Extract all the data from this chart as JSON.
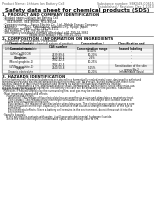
{
  "header_left": "Product Name: Lithium Ion Battery Cell",
  "header_right_line1": "Substance number: SBK049-00615",
  "header_right_line2": "Established / Revision: Dec.1.2010",
  "title": "Safety data sheet for chemical products (SDS)",
  "section1_title": "1. PRODUCT AND COMPANY IDENTIFICATION",
  "section1_lines": [
    " · Product name: Lithium Ion Battery Cell",
    " · Product code: Cylindrical-type cell",
    "      014-86500,  014-86500,  014-8650A",
    " · Company name:    Sanyo Electric Co., Ltd., Mobile Energy Company",
    " · Address:         2001, Kamiosakan, Sumoto-City, Hyogo, Japan",
    " · Telephone number:   +81-799-26-4111",
    " · Fax number:  +81-799-26-4120",
    " · Emergency telephone number (Weekday) +81-799-26-3862",
    "                               (Night and Holiday) +81-799-26-3101"
  ],
  "section2_title": "2. COMPOSITION / INFORMATION ON INGREDIENTS",
  "section2_sub": " · Substance or preparation: Preparation",
  "section2_sub2": " · Information about the chemical nature of product",
  "table_col_names": [
    "Chemical name /\nCommon name",
    "CAS number",
    "Concentration /\nConcentration range",
    "Classification and\nhazard labeling"
  ],
  "table_rows": [
    [
      "Lithium cobalt tantalate\n(LiMnCo PECOX)",
      "-",
      "30-40%",
      "-"
    ],
    [
      "Iron",
      "7439-89-6",
      "10-20%",
      "-"
    ],
    [
      "Aluminum",
      "7429-90-5",
      "2-5%",
      "-"
    ],
    [
      "Graphite\n(Mixed graphite-1)\n(4/5No graphite-1)",
      "7782-42-5\n7782-42-5",
      "10-25%",
      "-"
    ],
    [
      "Copper",
      "7440-50-8",
      "5-15%",
      "Sensitization of the skin\ngroup No.2"
    ],
    [
      "Organic electrolyte",
      "-",
      "10-20%",
      "Inflammable liquid"
    ]
  ],
  "section3_title": "3. HAZARDS IDENTIFICATION",
  "section3_text": [
    "For the battery cell, chemical substances are stored in a hermetically sealed metal case, designed to withstand",
    "temperatures during electro-decomposition during normal use. As a result, during normal-use, there is no",
    "physical danger of ignition or explosion and there is no danger of hazardous materials leakage.",
    "  However, if exposed to a fire, added mechanical shock, decomposed, when electric shock or by miss-use,",
    "the gas release vent can be operated. The battery cell case will be breached or fire-polemic, hazardous",
    "materials may be released.",
    "  Moreover, if heated strongly by the surrounding fire, soot gas may be emitted.",
    "",
    " · Most important hazard and effects:",
    "      Human health effects:",
    "        Inhalation: The release of the electrolyte has an anesthesia action and stimulates a respiratory tract.",
    "        Skin contact: The release of the electrolyte stimulates a skin. The electrolyte skin contact causes a",
    "        sore and stimulation on the skin.",
    "        Eye contact: The release of the electrolyte stimulates eyes. The electrolyte eye contact causes a sore",
    "        and stimulation on the eye. Especially, a substance that causes a strong inflammation of the eye is",
    "        contained.",
    "        Environmental effects: Since a battery cell remains in the environment, do not throw out it into the",
    "        environment.",
    "",
    " · Specific hazards:",
    "      If the electrolyte contacts with water, it will generate detrimental hydrogen fluoride.",
    "      Since the neat electrolyte is inflammable liquid, do not bring close to fire."
  ],
  "bg_color": "#ffffff",
  "text_color": "#111111",
  "line_color": "#777777",
  "table_header_bg": "#d8d8d8",
  "table_row_bg_even": "#f5f5f5",
  "table_row_bg_odd": "#ffffff"
}
